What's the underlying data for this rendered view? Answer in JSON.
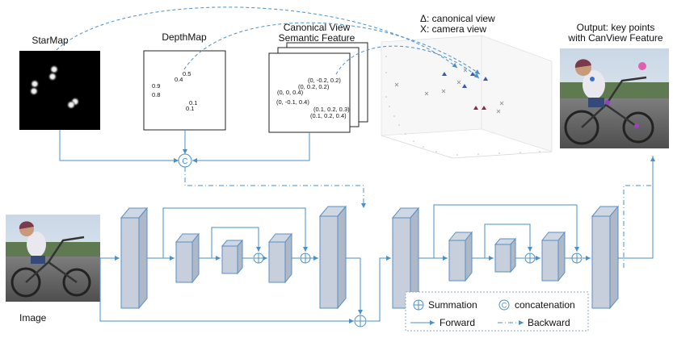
{
  "labels": {
    "starmap": "StarMap",
    "depthmap": "DepthMap",
    "canview_line1": "Canonical View",
    "canview_line2": "Semantic Feature",
    "tri_legend": "Δ: canonical view",
    "x_legend": "X: camera view",
    "output_line1": "Output: key points",
    "output_line2": "with CanView Feature",
    "image": "Image"
  },
  "depth_values": [
    "0.5",
    "0.4",
    "0.9",
    "0.8",
    "0.1",
    "0.1"
  ],
  "canonical_coords": [
    "(0, -0.2, 0.2)",
    "(0, 0.2, 0.2)",
    "(0, 0, 0.4)",
    "(0, -0.1, 0.4)",
    "(0.1, 0.2, 0.3)",
    "(0.1, 0.2, 0.4)"
  ],
  "concat_symbol": "C",
  "legend": {
    "summation": "Summation",
    "concatenation": "concatenation",
    "forward": "Forward",
    "backward": "Backward",
    "concat_symbol": "C"
  },
  "colors": {
    "arrow_blue": "#4a90c8",
    "block_fill": "#aeb8c6",
    "block_stroke": "#5b8fc4",
    "triangle_blue": "#3558b8",
    "triangle_maroon": "#8a2a4a",
    "cross_gray": "#9a9a9a"
  }
}
